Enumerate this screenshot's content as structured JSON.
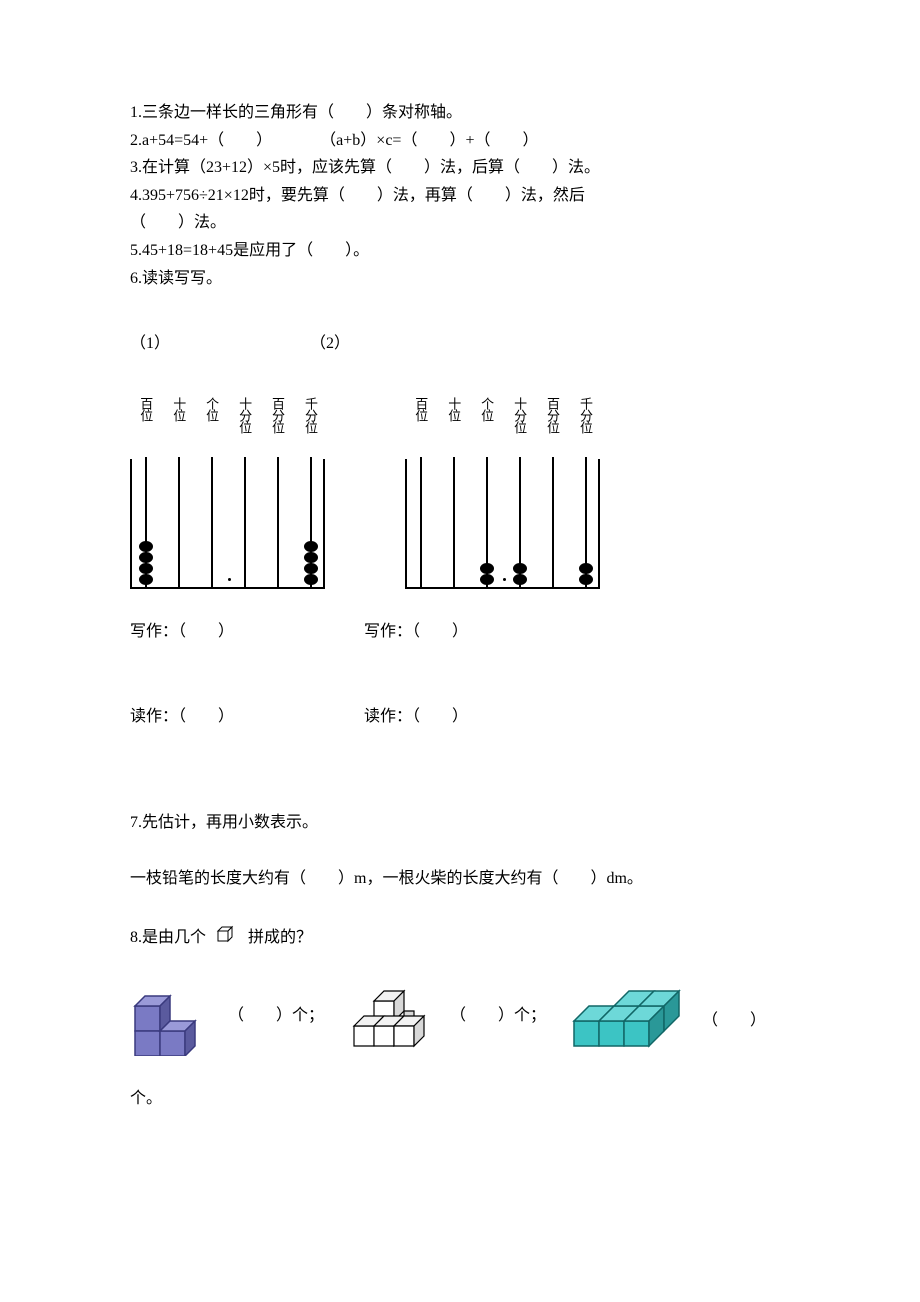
{
  "q1": "1.三条边一样长的三角形有（　　）条对称轴。",
  "q2": "2.a+54=54+（　　）　　　　（a+b）×c=（　　）+（　　）",
  "q3": "3.在计算（23+12）×5时，应该先算（　　）法，后算（　　）法。",
  "q4a": "4.395+756÷21×12时，要先算（　　）法，再算（　　）法，然后",
  "q4b": "（　　）法。",
  "q5": "5.45+18=18+45是应用了（　　）。",
  "q6": "6.读读写写。",
  "q6p1": "（1）",
  "q6p2": "（2）",
  "abacus_labels": [
    "百位",
    "十位",
    "个位",
    "十分位",
    "百分位",
    "千分位"
  ],
  "abacus1_beads": [
    4,
    0,
    0,
    0,
    0,
    4
  ],
  "abacus2_beads": [
    0,
    0,
    2,
    2,
    0,
    2
  ],
  "write_label": "写作：（　　）",
  "read_label": "读作：（　　）",
  "q7": "7.先估计，再用小数表示。",
  "q7b": "一枝铅笔的长度大约有（　　）m，一根火柴的长度大约有（　　）dm。",
  "q8_prefix": "8.是由几个",
  "q8_suffix": "拼成的？",
  "count_label": "（　　）个；",
  "count_label_last": "（　　）",
  "last_unit": "个。",
  "colors": {
    "text": "#000000",
    "bg": "#ffffff",
    "cube_purple": "#7a7ac4",
    "cube_purple_dark": "#5a5a9e",
    "cube_white": "#ffffff",
    "cube_gray": "#d0d0d0",
    "cube_teal": "#3cc4c4",
    "cube_teal_dark": "#2a9898"
  }
}
